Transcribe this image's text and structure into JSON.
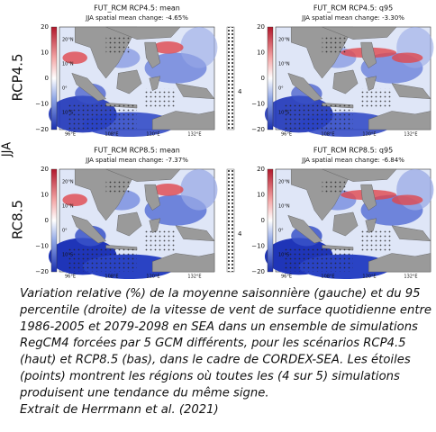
{
  "row_labels": {
    "season": "JJA",
    "rows": [
      "RCP4.5",
      "RC8.5"
    ]
  },
  "panels": [
    {
      "title": "FUT_RCM RCP4.5: mean",
      "subtitle": "JJA spatial mean change: -4.65%"
    },
    {
      "title": "FUT_RCM RCP4.5: q95",
      "subtitle": "JJA spatial mean change: -3.30%"
    },
    {
      "title": "FUT_RCM RCP8.5: mean",
      "subtitle": "JJA spatial mean change: -7.37%"
    },
    {
      "title": "FUT_RCM RCP8.5: q95",
      "subtitle": "JJA spatial mean change: -6.84%"
    }
  ],
  "colorbar_ticks": [
    "20",
    "10",
    "0",
    "−10",
    "−20"
  ],
  "lat_labels": [
    "20°N",
    "10°N",
    "0°",
    "10°S"
  ],
  "lon_labels": [
    "96°E",
    "108°E",
    "120°E",
    "132°E"
  ],
  "stipple_label": "4",
  "caption": {
    "lines": [
      "Variation relative (%) de la moyenne saisonnière (gauche) et du 95",
      "percentile (droite) de la vitesse de vent de surface quotidienne entre",
      "1986-2005 et 2079-2098 en SEA dans un ensemble de simulations",
      "RegCM4 forcées par 5 GCM différents, pour les scénarios RCP4.5",
      "(haut) et RCP8.5 (bas), dans le cadre de CORDEX-SEA. Les étoiles",
      "(points) montrent les régions où toutes les (4 sur 5) simulations",
      "produisent une tendance du même signe."
    ],
    "source": "Extrait de Herrmann et al. (2021)"
  }
}
